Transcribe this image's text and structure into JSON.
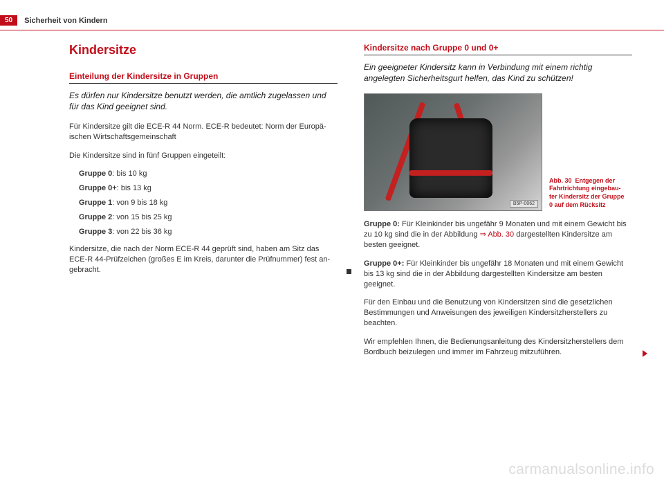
{
  "header": {
    "page_number": "50",
    "section": "Sicherheit von Kindern"
  },
  "left": {
    "title": "Kindersitze",
    "subtitle": "Einteilung der Kindersitze in Gruppen",
    "lead": "Es dürfen nur Kindersitze benutzt werden, die amtlich zuge­lassen und für das Kind geeignet sind.",
    "p1": "Für Kindersitze gilt die ECE-R 44 Norm. ECE-R bedeutet: Norm der Europä­ischen Wirtschaftsgemeinschaft",
    "p2": "Die Kindersitze sind in fünf Gruppen eingeteilt:",
    "groups": [
      {
        "label": "Gruppe 0",
        "text": ": bis 10 kg"
      },
      {
        "label": "Gruppe 0+",
        "text": ": bis 13 kg"
      },
      {
        "label": "Gruppe 1",
        "text": ": von 9 bis 18 kg"
      },
      {
        "label": "Gruppe 2",
        "text": ": von 15 bis 25 kg"
      },
      {
        "label": "Gruppe 3",
        "text": ": von 22 bis 36 kg"
      }
    ],
    "p3": "Kindersitze, die nach der Norm ECE-R 44 geprüft sind, haben am Sitz das ECE-R 44-Prüfzeichen (großes E im Kreis, darunter die Prüfnummer) fest an­gebracht."
  },
  "right": {
    "subtitle": "Kindersitze nach Gruppe 0 und 0+",
    "lead": "Ein geeigneter Kindersitz kann in Verbindung mit einem richtig angelegten Sicherheitsgurt helfen, das Kind zu schützen!",
    "fig": {
      "code": "B5P-0062",
      "caption_label": "Abb. 30",
      "caption_text": "Entgegen der Fahrtrichtung eingebau­ter Kindersitz der Gruppe 0 auf dem Rücksitz"
    },
    "p1_label": "Gruppe 0:",
    "p1_a": " Für Kleinkinder bis ungefähr 9 Monaten und mit einem Gewicht bis zu 10 kg sind die in der Abbildung ",
    "p1_ref": "⇒ Abb. 30",
    "p1_b": " dargestellten Kindersitze am besten geeignet.",
    "p2_label": "Gruppe 0+:",
    "p2_text": " Für Kleinkinder bis ungefähr 18 Monaten und mit einem Ge­wicht bis 13 kg sind die in der Abbildung dargestellten Kindersitze am bes­ten geeignet.",
    "p3": "Für den Einbau und die Benutzung von Kindersitzen sind die gesetzlichen Bestimmungen und Anweisungen des jeweiligen Kindersitzherstellers zu beachten.",
    "p4": "Wir empfehlen Ihnen, die Bedienungsanleitung des Kindersitzherstellers dem Bordbuch beizulegen und immer im Fahrzeug mitzuführen."
  },
  "watermark": "carmanualsonline.info"
}
